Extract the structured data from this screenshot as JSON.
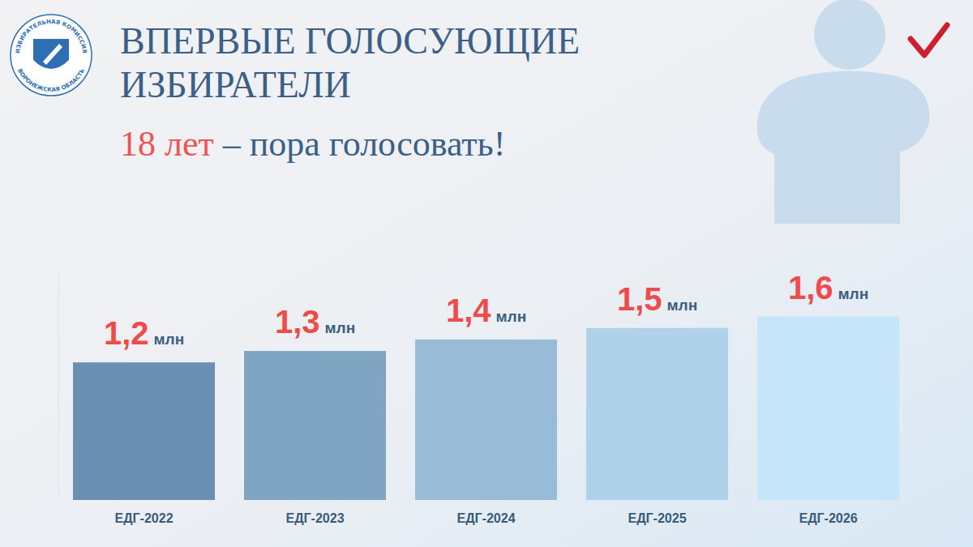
{
  "chart_data": {
    "type": "bar",
    "title": "ВПЕРВЫЕ ГОЛОСУЮЩИЕ ИЗБИРАТЕЛИ",
    "subtitle": "18 лет – пора голосовать!",
    "annotations": [
      "ИЗБИРАТЕЛЬНАЯ КОМИССИЯ",
      "ВОРОНЕЖСКАЯ ОБЛАСТЬ"
    ],
    "categories": [
      "ЕДГ-2022",
      "ЕДГ-2023",
      "ЕДГ-2024",
      "ЕДГ-2025",
      "ЕДГ-2026"
    ],
    "values": [
      1.2,
      1.3,
      1.4,
      1.5,
      1.6
    ],
    "value_labels": [
      "1,2 млн",
      "1,3 млн",
      "1,4 млн",
      "1,5 млн",
      "1,6 млн"
    ],
    "colors": [
      "#6a8fb0",
      "#80a5c3",
      "#98bcd8",
      "#afd1ea",
      "#c6e5fb"
    ],
    "ylim": [
      0,
      2
    ],
    "data_labels": true,
    "tick_labels": "x",
    "grid": false
  }
}
